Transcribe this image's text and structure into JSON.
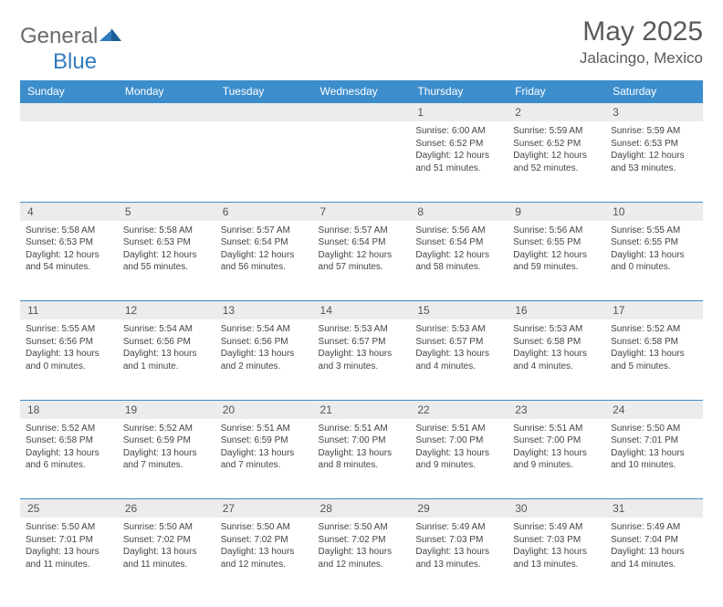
{
  "brand": {
    "name_a": "General",
    "name_b": "Blue"
  },
  "title": "May 2025",
  "location": "Jalacingo, Mexico",
  "colors": {
    "header_bg": "#3c8dcc",
    "header_fg": "#ffffff",
    "daynum_bg": "#ececec",
    "rule": "#3c8dcc",
    "text": "#444444",
    "title_fg": "#5a5a5a"
  },
  "weekdays": [
    "Sunday",
    "Monday",
    "Tuesday",
    "Wednesday",
    "Thursday",
    "Friday",
    "Saturday"
  ],
  "layout": {
    "first_weekday_index": 4,
    "days_in_month": 31
  },
  "days": {
    "1": {
      "sunrise": "6:00 AM",
      "sunset": "6:52 PM",
      "daylight": "12 hours and 51 minutes."
    },
    "2": {
      "sunrise": "5:59 AM",
      "sunset": "6:52 PM",
      "daylight": "12 hours and 52 minutes."
    },
    "3": {
      "sunrise": "5:59 AM",
      "sunset": "6:53 PM",
      "daylight": "12 hours and 53 minutes."
    },
    "4": {
      "sunrise": "5:58 AM",
      "sunset": "6:53 PM",
      "daylight": "12 hours and 54 minutes."
    },
    "5": {
      "sunrise": "5:58 AM",
      "sunset": "6:53 PM",
      "daylight": "12 hours and 55 minutes."
    },
    "6": {
      "sunrise": "5:57 AM",
      "sunset": "6:54 PM",
      "daylight": "12 hours and 56 minutes."
    },
    "7": {
      "sunrise": "5:57 AM",
      "sunset": "6:54 PM",
      "daylight": "12 hours and 57 minutes."
    },
    "8": {
      "sunrise": "5:56 AM",
      "sunset": "6:54 PM",
      "daylight": "12 hours and 58 minutes."
    },
    "9": {
      "sunrise": "5:56 AM",
      "sunset": "6:55 PM",
      "daylight": "12 hours and 59 minutes."
    },
    "10": {
      "sunrise": "5:55 AM",
      "sunset": "6:55 PM",
      "daylight": "13 hours and 0 minutes."
    },
    "11": {
      "sunrise": "5:55 AM",
      "sunset": "6:56 PM",
      "daylight": "13 hours and 0 minutes."
    },
    "12": {
      "sunrise": "5:54 AM",
      "sunset": "6:56 PM",
      "daylight": "13 hours and 1 minute."
    },
    "13": {
      "sunrise": "5:54 AM",
      "sunset": "6:56 PM",
      "daylight": "13 hours and 2 minutes."
    },
    "14": {
      "sunrise": "5:53 AM",
      "sunset": "6:57 PM",
      "daylight": "13 hours and 3 minutes."
    },
    "15": {
      "sunrise": "5:53 AM",
      "sunset": "6:57 PM",
      "daylight": "13 hours and 4 minutes."
    },
    "16": {
      "sunrise": "5:53 AM",
      "sunset": "6:58 PM",
      "daylight": "13 hours and 4 minutes."
    },
    "17": {
      "sunrise": "5:52 AM",
      "sunset": "6:58 PM",
      "daylight": "13 hours and 5 minutes."
    },
    "18": {
      "sunrise": "5:52 AM",
      "sunset": "6:58 PM",
      "daylight": "13 hours and 6 minutes."
    },
    "19": {
      "sunrise": "5:52 AM",
      "sunset": "6:59 PM",
      "daylight": "13 hours and 7 minutes."
    },
    "20": {
      "sunrise": "5:51 AM",
      "sunset": "6:59 PM",
      "daylight": "13 hours and 7 minutes."
    },
    "21": {
      "sunrise": "5:51 AM",
      "sunset": "7:00 PM",
      "daylight": "13 hours and 8 minutes."
    },
    "22": {
      "sunrise": "5:51 AM",
      "sunset": "7:00 PM",
      "daylight": "13 hours and 9 minutes."
    },
    "23": {
      "sunrise": "5:51 AM",
      "sunset": "7:00 PM",
      "daylight": "13 hours and 9 minutes."
    },
    "24": {
      "sunrise": "5:50 AM",
      "sunset": "7:01 PM",
      "daylight": "13 hours and 10 minutes."
    },
    "25": {
      "sunrise": "5:50 AM",
      "sunset": "7:01 PM",
      "daylight": "13 hours and 11 minutes."
    },
    "26": {
      "sunrise": "5:50 AM",
      "sunset": "7:02 PM",
      "daylight": "13 hours and 11 minutes."
    },
    "27": {
      "sunrise": "5:50 AM",
      "sunset": "7:02 PM",
      "daylight": "13 hours and 12 minutes."
    },
    "28": {
      "sunrise": "5:50 AM",
      "sunset": "7:02 PM",
      "daylight": "13 hours and 12 minutes."
    },
    "29": {
      "sunrise": "5:49 AM",
      "sunset": "7:03 PM",
      "daylight": "13 hours and 13 minutes."
    },
    "30": {
      "sunrise": "5:49 AM",
      "sunset": "7:03 PM",
      "daylight": "13 hours and 13 minutes."
    },
    "31": {
      "sunrise": "5:49 AM",
      "sunset": "7:04 PM",
      "daylight": "13 hours and 14 minutes."
    }
  },
  "labels": {
    "sunrise": "Sunrise:",
    "sunset": "Sunset:",
    "daylight": "Daylight:"
  }
}
